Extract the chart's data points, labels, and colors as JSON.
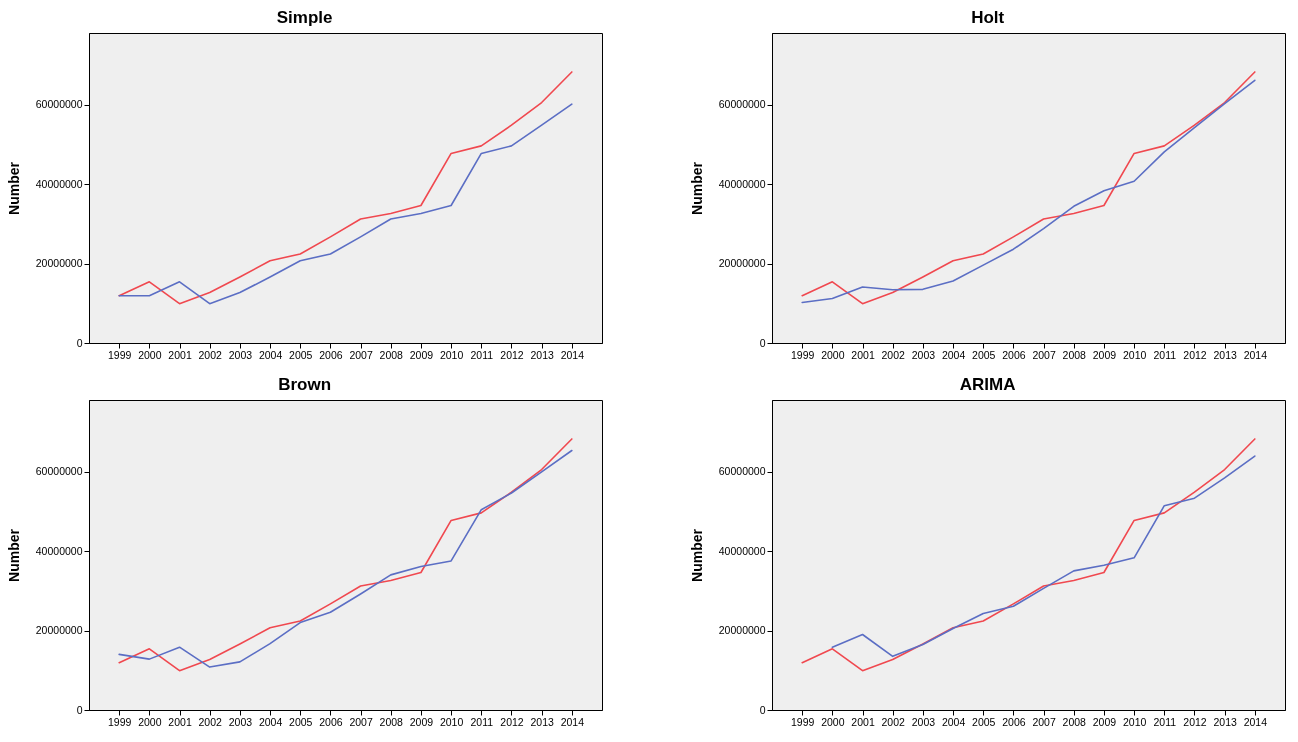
{
  "chart_data": [
    {
      "type": "line",
      "title": "Simple",
      "ylabel": "Number",
      "categories": [
        "1999",
        "2000",
        "2001",
        "2002",
        "2003",
        "2004",
        "2005",
        "2006",
        "2007",
        "2008",
        "2009",
        "2010",
        "2011",
        "2012",
        "2013",
        "2014"
      ],
      "ylim": [
        0,
        78000000
      ],
      "yticks": [
        0,
        20000000,
        40000000,
        60000000
      ],
      "series": [
        {
          "color": "#f0484f",
          "values": [
            11900000,
            15400000,
            9900000,
            12700000,
            16600000,
            20700000,
            22400000,
            26700000,
            31200000,
            32600000,
            34600000,
            47700000,
            49600000,
            54800000,
            60500000,
            68200000
          ]
        },
        {
          "color": "#5b6ec4",
          "values": [
            11900000,
            11900000,
            15400000,
            9900000,
            12700000,
            16600000,
            20700000,
            22400000,
            26700000,
            31200000,
            32600000,
            34600000,
            47700000,
            49600000,
            54800000,
            60100000
          ]
        }
      ]
    },
    {
      "type": "line",
      "title": "Holt",
      "ylabel": "Number",
      "categories": [
        "1999",
        "2000",
        "2001",
        "2002",
        "2003",
        "2004",
        "2005",
        "2006",
        "2007",
        "2008",
        "2009",
        "2010",
        "2011",
        "2012",
        "2013",
        "2014"
      ],
      "ylim": [
        0,
        78000000
      ],
      "yticks": [
        0,
        20000000,
        40000000,
        60000000
      ],
      "series": [
        {
          "color": "#f0484f",
          "values": [
            11900000,
            15400000,
            9900000,
            12700000,
            16600000,
            20700000,
            22400000,
            26700000,
            31200000,
            32600000,
            34600000,
            47700000,
            49600000,
            54800000,
            60500000,
            68200000
          ]
        },
        {
          "color": "#5b6ec4",
          "values": [
            10200000,
            11200000,
            14100000,
            13400000,
            13500000,
            15600000,
            19600000,
            23600000,
            28800000,
            34400000,
            38300000,
            40700000,
            48100000,
            54200000,
            60200000,
            66100000
          ]
        }
      ]
    },
    {
      "type": "line",
      "title": "Brown",
      "ylabel": "Number",
      "categories": [
        "1999",
        "2000",
        "2001",
        "2002",
        "2003",
        "2004",
        "2005",
        "2006",
        "2007",
        "2008",
        "2009",
        "2010",
        "2011",
        "2012",
        "2013",
        "2014"
      ],
      "ylim": [
        0,
        78000000
      ],
      "yticks": [
        0,
        20000000,
        40000000,
        60000000
      ],
      "series": [
        {
          "color": "#f0484f",
          "values": [
            11900000,
            15400000,
            9900000,
            12700000,
            16600000,
            20700000,
            22400000,
            26700000,
            31200000,
            32600000,
            34600000,
            47700000,
            49600000,
            54800000,
            60500000,
            68200000
          ]
        },
        {
          "color": "#5b6ec4",
          "values": [
            14000000,
            12800000,
            15800000,
            10800000,
            12100000,
            16700000,
            22000000,
            24600000,
            29200000,
            34000000,
            36100000,
            37500000,
            50400000,
            54600000,
            59900000,
            65300000
          ]
        }
      ]
    },
    {
      "type": "line",
      "title": "ARIMA",
      "ylabel": "Number",
      "categories": [
        "1999",
        "2000",
        "2001",
        "2002",
        "2003",
        "2004",
        "2005",
        "2006",
        "2007",
        "2008",
        "2009",
        "2010",
        "2011",
        "2012",
        "2013",
        "2014"
      ],
      "ylim": [
        0,
        78000000
      ],
      "yticks": [
        0,
        20000000,
        40000000,
        60000000
      ],
      "series": [
        {
          "color": "#f0484f",
          "values": [
            11900000,
            15400000,
            9900000,
            12700000,
            16600000,
            20700000,
            22400000,
            26700000,
            31200000,
            32600000,
            34600000,
            47700000,
            49600000,
            54800000,
            60500000,
            68200000
          ]
        },
        {
          "color": "#5b6ec4",
          "values": [
            null,
            15800000,
            19000000,
            13500000,
            16500000,
            20500000,
            24300000,
            26100000,
            30600000,
            35000000,
            36400000,
            38300000,
            51400000,
            53300000,
            58400000,
            63900000
          ]
        }
      ]
    }
  ]
}
